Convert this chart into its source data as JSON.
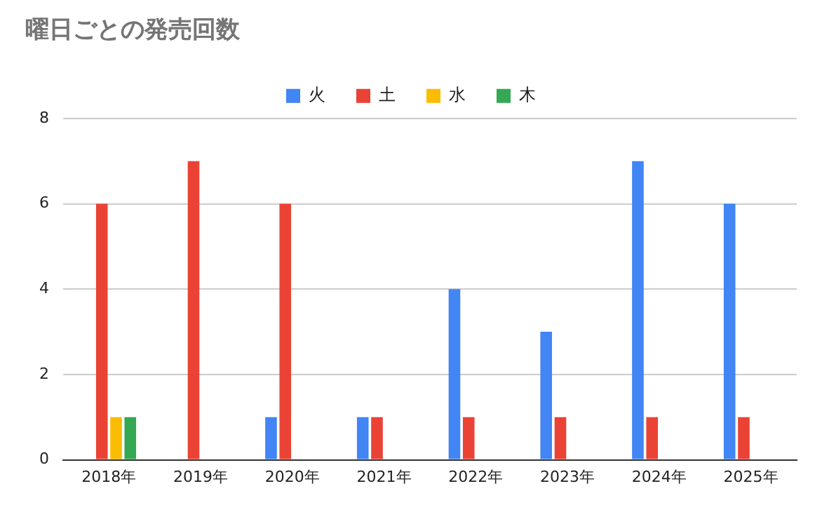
{
  "chart_data": {
    "type": "bar",
    "title": "曜日ごとの発売回数",
    "categories": [
      "2018年",
      "2019年",
      "2020年",
      "2021年",
      "2022年",
      "2023年",
      "2024年",
      "2025年"
    ],
    "series": [
      {
        "name": "火",
        "color": "#4285f4",
        "values": [
          0,
          0,
          1,
          1,
          4,
          3,
          7,
          6
        ]
      },
      {
        "name": "土",
        "color": "#ea4335",
        "values": [
          6,
          7,
          6,
          1,
          1,
          1,
          1,
          1
        ]
      },
      {
        "name": "水",
        "color": "#fbbc04",
        "values": [
          1,
          0,
          0,
          0,
          0,
          0,
          0,
          0
        ]
      },
      {
        "name": "木",
        "color": "#34a853",
        "values": [
          1,
          0,
          0,
          0,
          0,
          0,
          0,
          0
        ]
      }
    ],
    "ylim": [
      0,
      8
    ],
    "yticks": [
      0,
      2,
      4,
      6,
      8
    ],
    "grid": "y",
    "legend": "top"
  }
}
